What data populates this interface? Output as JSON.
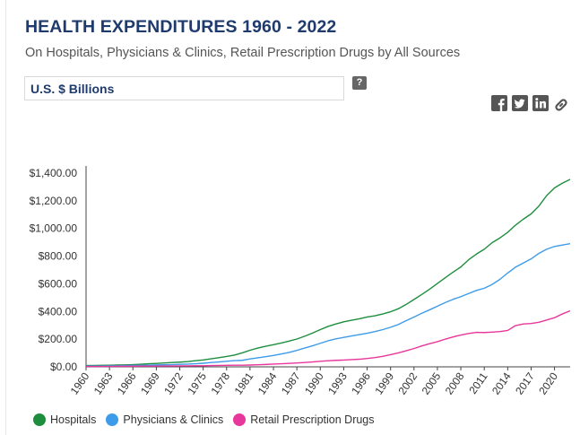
{
  "header": {
    "title": "HEALTH EXPENDITURES 1960 - 2022",
    "subtitle": "On Hospitals, Physicians & Clinics, Retail Prescription Drugs by All Sources",
    "unit_select": "U.S. $ Billions",
    "help_label": "?"
  },
  "share_icons": [
    "facebook-icon",
    "twitter-icon",
    "linkedin-icon",
    "link-icon"
  ],
  "colors": {
    "Hospitals": "#1e8e3e",
    "Physicians & Clinics": "#3d9be9",
    "Retail Prescription Drugs": "#e8379b",
    "title": "#1f3a6d"
  },
  "chart_data": {
    "type": "line",
    "title": "HEALTH EXPENDITURES 1960 - 2022",
    "subtitle": "On Hospitals, Physicians & Clinics, Retail Prescription Drugs by All Sources",
    "xlabel": "",
    "ylabel": "",
    "ylim": [
      0,
      1400
    ],
    "yticks": [
      "$0.00",
      "$200.00",
      "$400.00",
      "$600.00",
      "$800.00",
      "$1,000.00",
      "$1,200.00",
      "$1,400.00"
    ],
    "xticks": [
      "1960",
      "1963",
      "1966",
      "1969",
      "1972",
      "1975",
      "1978",
      "1981",
      "1984",
      "1987",
      "1990",
      "1993",
      "1996",
      "1999",
      "2002",
      "2005",
      "2008",
      "2011",
      "2014",
      "2017",
      "2020"
    ],
    "grid": false,
    "legend_position": "bottom-left",
    "x": [
      1960,
      1961,
      1962,
      1963,
      1964,
      1965,
      1966,
      1967,
      1968,
      1969,
      1970,
      1971,
      1972,
      1973,
      1974,
      1975,
      1976,
      1977,
      1978,
      1979,
      1980,
      1981,
      1982,
      1983,
      1984,
      1985,
      1986,
      1987,
      1988,
      1989,
      1990,
      1991,
      1992,
      1993,
      1994,
      1995,
      1996,
      1997,
      1998,
      1999,
      2000,
      2001,
      2002,
      2003,
      2004,
      2005,
      2006,
      2007,
      2008,
      2009,
      2010,
      2011,
      2012,
      2013,
      2014,
      2015,
      2016,
      2017,
      2018,
      2019,
      2020,
      2021,
      2022
    ],
    "series": [
      {
        "name": "Hospitals",
        "values": [
          9,
          10,
          11,
          12,
          13,
          14,
          16,
          19,
          22,
          25,
          28,
          31,
          34,
          38,
          44,
          50,
          58,
          66,
          75,
          85,
          101,
          120,
          136,
          149,
          160,
          172,
          186,
          201,
          221,
          244,
          269,
          292,
          310,
          325,
          337,
          347,
          360,
          369,
          382,
          398,
          420,
          451,
          487,
          523,
          561,
          602,
          644,
          684,
          722,
          774,
          815,
          850,
          897,
          931,
          972,
          1024,
          1067,
          1105,
          1162,
          1238,
          1293,
          1327,
          1355
        ]
      },
      {
        "name": "Physicians & Clinics",
        "values": [
          5,
          6,
          6,
          7,
          8,
          9,
          10,
          11,
          12,
          14,
          15,
          16,
          18,
          20,
          22,
          26,
          31,
          35,
          40,
          45,
          47,
          57,
          65,
          73,
          82,
          93,
          104,
          119,
          136,
          152,
          170,
          188,
          202,
          213,
          223,
          233,
          243,
          255,
          269,
          286,
          306,
          334,
          360,
          387,
          412,
          438,
          464,
          488,
          507,
          530,
          552,
          568,
          595,
          632,
          678,
          720,
          750,
          780,
          820,
          850,
          870,
          880,
          890
        ]
      },
      {
        "name": "Retail Prescription Drugs",
        "values": [
          3,
          3,
          3,
          3,
          4,
          4,
          4,
          5,
          5,
          5,
          6,
          6,
          7,
          7,
          8,
          8,
          9,
          10,
          11,
          12,
          12,
          13,
          15,
          17,
          20,
          22,
          25,
          28,
          31,
          35,
          40,
          44,
          47,
          49,
          52,
          55,
          60,
          67,
          76,
          88,
          101,
          116,
          132,
          151,
          167,
          182,
          200,
          216,
          230,
          241,
          249,
          248,
          251,
          255,
          263,
          298,
          310,
          313,
          322,
          338,
          355,
          382,
          405
        ]
      }
    ]
  }
}
